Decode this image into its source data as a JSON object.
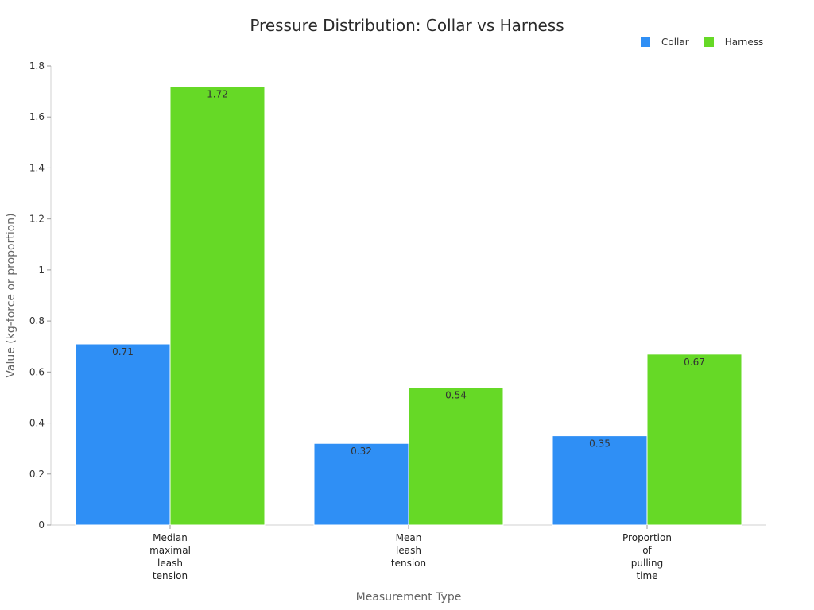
{
  "chart_data": {
    "type": "bar",
    "title": "Pressure Distribution: Collar vs Harness",
    "xlabel": "Measurement Type",
    "ylabel": "Value (kg-force or proportion)",
    "categories": [
      "Median maximal leash tension",
      "Mean leash tension",
      "Proportion of pulling time"
    ],
    "category_lines": [
      [
        "Median",
        "maximal",
        "leash",
        "tension"
      ],
      [
        "Mean",
        "leash",
        "tension"
      ],
      [
        "Proportion",
        "of",
        "pulling",
        "time"
      ]
    ],
    "series": [
      {
        "name": "Collar",
        "color": "#2f8ff5",
        "values": [
          0.71,
          0.32,
          0.35
        ]
      },
      {
        "name": "Harness",
        "color": "#66d926",
        "values": [
          1.72,
          0.54,
          0.67
        ]
      }
    ],
    "ylim": [
      0,
      1.8
    ],
    "yticks": [
      0,
      0.2,
      0.4,
      0.6,
      0.8,
      1,
      1.2,
      1.4,
      1.6,
      1.8
    ],
    "ytick_labels": [
      "0",
      "0.2",
      "0.4",
      "0.6",
      "0.8",
      "1",
      "1.2",
      "1.4",
      "1.6",
      "1.8"
    ],
    "grid": false,
    "legend_position": "top-right"
  }
}
